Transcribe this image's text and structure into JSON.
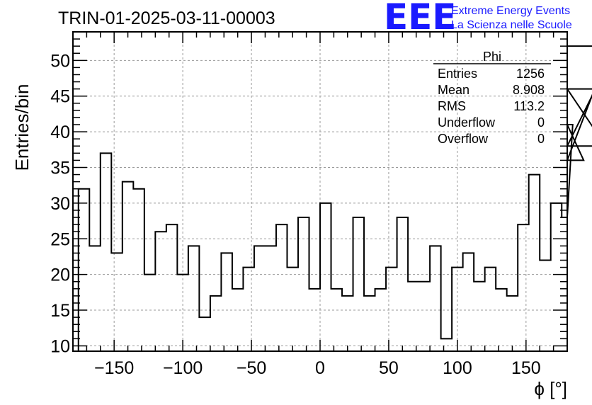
{
  "chart_data": {
    "type": "histogram",
    "title": "TRIN-01-2025-03-11-00003",
    "xlabel": "ϕ [°]",
    "ylabel": "Entries/bin",
    "xlim": [
      -180,
      180
    ],
    "ylim": [
      9.25,
      54
    ],
    "bin_width": 8,
    "x_ticks": [
      -150,
      -100,
      -50,
      0,
      50,
      100,
      150
    ],
    "x_tick_labels": [
      "−150",
      "−100",
      "−50",
      "0",
      "50",
      "100",
      "150"
    ],
    "y_ticks": [
      10,
      15,
      20,
      25,
      30,
      35,
      40,
      45,
      50
    ],
    "y_tick_labels": [
      "10",
      "15",
      "20",
      "25",
      "30",
      "35",
      "40",
      "45",
      "50"
    ],
    "grid": true,
    "bin_edges_start": -176,
    "values": [
      32,
      24,
      37,
      23,
      33,
      32,
      20,
      26,
      27,
      20,
      24,
      14,
      17,
      23,
      18,
      21,
      24,
      24,
      27,
      21,
      28,
      18,
      30,
      18,
      17,
      28,
      17,
      18,
      21,
      28,
      19,
      19,
      24,
      11,
      21,
      23,
      19,
      21,
      18,
      17,
      27,
      34,
      22,
      30,
      28,
      41,
      36,
      46,
      38,
      52
    ],
    "stats_box": {
      "title": "Phi",
      "rows": [
        {
          "label": "Entries",
          "value": "1256"
        },
        {
          "label": "Mean",
          "value": "8.908"
        },
        {
          "label": "RMS",
          "value": "113.2"
        },
        {
          "label": "Underflow",
          "value": "0"
        },
        {
          "label": "Overflow",
          "value": "0"
        }
      ]
    }
  },
  "logo": {
    "text": "EEE",
    "line1": "Extreme Energy Events",
    "line2": "La Scienza nelle Scuole",
    "color": "#1a1aff"
  }
}
